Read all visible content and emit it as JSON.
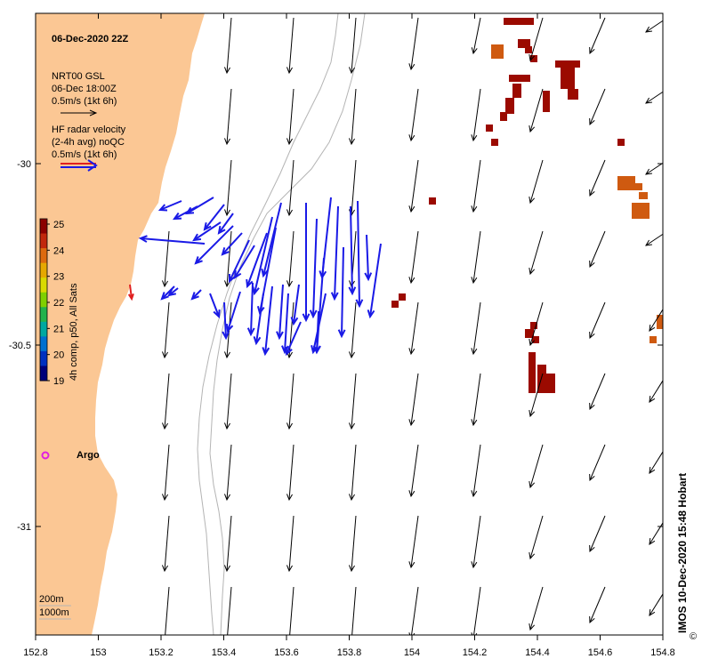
{
  "title": "06-Dec-2020 22Z",
  "legend": {
    "model_name": "NRT00 GSL",
    "model_time": "06-Dec 18:00Z",
    "model_scale": "0.5m/s (1kt 6h)",
    "radar_title": "HF radar velocity",
    "radar_sub": "(2-4h avg) noQC",
    "radar_scale": "0.5m/s (1kt 6h)"
  },
  "colorbar": {
    "label": "4h comp, p50, All Sats",
    "ticks": [
      "25",
      "24",
      "23",
      "22",
      "21",
      "20",
      "19"
    ],
    "colors": [
      "#8b0000",
      "#c1270c",
      "#dd6a0e",
      "#e6a800",
      "#d9d900",
      "#7fd000",
      "#22b24c",
      "#00a8a0",
      "#0070d0",
      "#0030c0",
      "#00007a"
    ]
  },
  "x_axis_ticks": [
    "152.8",
    "153",
    "153.2",
    "153.4",
    "153.6",
    "153.8",
    "154",
    "154.2",
    "154.4",
    "154.6",
    "154.8"
  ],
  "y_axis_ticks": [
    "-30",
    "-30.5",
    "-31"
  ],
  "argo_label": "Argo",
  "depth_labels": {
    "shallow": "200m",
    "deep": "1000m"
  },
  "credit": "IMOS 10-Dec-2020 15:48 Hobart",
  "credit_symbol": "©",
  "colors": {
    "land": "#fbc794",
    "radar": "#1a1ae6",
    "model": "#000000",
    "argo": "#e020e0",
    "sst_dark": "#9b0a00",
    "sst_orange": "#cf5a10",
    "contour": "#b4b4b4"
  }
}
